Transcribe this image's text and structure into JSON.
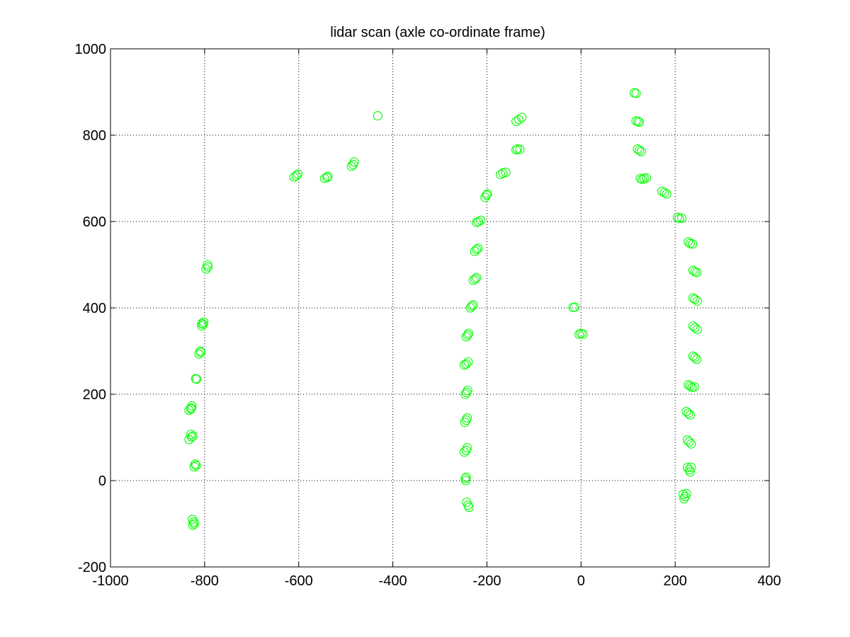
{
  "chart_data": {
    "type": "scatter",
    "title": "lidar scan (axle co-ordinate frame)",
    "xlabel": "",
    "ylabel": "",
    "xlim": [
      -1000,
      400
    ],
    "ylim": [
      -200,
      1000
    ],
    "xticks": [
      -1000,
      -800,
      -600,
      -400,
      -200,
      0,
      200,
      400
    ],
    "yticks": [
      -200,
      0,
      200,
      400,
      600,
      800,
      1000
    ],
    "xtick_labels": [
      "-1000",
      "-800",
      "-600",
      "-400",
      "-200",
      "0",
      "200",
      "400"
    ],
    "ytick_labels": [
      "-200",
      "0",
      "200",
      "400",
      "600",
      "800",
      "1000"
    ],
    "grid": true,
    "marker": "circle",
    "color": "#00ff00",
    "series": [
      {
        "points": [
          [
            -797,
            490
          ],
          [
            -793,
            495
          ],
          [
            -794,
            500
          ],
          [
            -806,
            358
          ],
          [
            -803,
            362
          ],
          [
            -802,
            367
          ],
          [
            -806,
            364
          ],
          [
            -812,
            293
          ],
          [
            -808,
            297
          ],
          [
            -809,
            300
          ],
          [
            -819,
            236
          ],
          [
            -817,
            235
          ],
          [
            -833,
            163
          ],
          [
            -828,
            168
          ],
          [
            -827,
            173
          ],
          [
            -829,
            166
          ],
          [
            -833,
            95
          ],
          [
            -828,
            101
          ],
          [
            -825,
            103
          ],
          [
            -829,
            107
          ],
          [
            -822,
            32
          ],
          [
            -820,
            38
          ],
          [
            -818,
            35
          ],
          [
            -826,
            -90
          ],
          [
            -823,
            -96
          ],
          [
            -825,
            -103
          ],
          [
            -822,
            -100
          ],
          [
            -610,
            703
          ],
          [
            -605,
            706
          ],
          [
            -602,
            710
          ],
          [
            -545,
            700
          ],
          [
            -540,
            702
          ],
          [
            -538,
            705
          ],
          [
            -488,
            728
          ],
          [
            -484,
            732
          ],
          [
            -482,
            738
          ],
          [
            -432,
            845
          ],
          [
            -171,
            709
          ],
          [
            -166,
            712
          ],
          [
            -160,
            714
          ],
          [
            -204,
            656
          ],
          [
            -201,
            661
          ],
          [
            -199,
            664
          ],
          [
            -222,
            598
          ],
          [
            -218,
            600
          ],
          [
            -213,
            603
          ],
          [
            -226,
            531
          ],
          [
            -222,
            535
          ],
          [
            -219,
            538
          ],
          [
            -229,
            464
          ],
          [
            -225,
            467
          ],
          [
            -222,
            470
          ],
          [
            -235,
            400
          ],
          [
            -232,
            404
          ],
          [
            -229,
            407
          ],
          [
            -244,
            333
          ],
          [
            -241,
            337
          ],
          [
            -239,
            341
          ],
          [
            -248,
            268
          ],
          [
            -244,
            270
          ],
          [
            -240,
            275
          ],
          [
            -246,
            200
          ],
          [
            -243,
            204
          ],
          [
            -241,
            209
          ],
          [
            -247,
            135
          ],
          [
            -244,
            140
          ],
          [
            -242,
            145
          ],
          [
            -248,
            66
          ],
          [
            -244,
            70
          ],
          [
            -242,
            76
          ],
          [
            -246,
            5
          ],
          [
            -244,
            8
          ],
          [
            -245,
            0
          ],
          [
            -243,
            -50
          ],
          [
            -240,
            -57
          ],
          [
            -238,
            -62
          ],
          [
            -138,
            832
          ],
          [
            -132,
            836
          ],
          [
            -126,
            841
          ],
          [
            -138,
            766
          ],
          [
            -135,
            768
          ],
          [
            -130,
            767
          ],
          [
            -17,
            401
          ],
          [
            -13,
            402
          ],
          [
            -4,
            339
          ],
          [
            0,
            341
          ],
          [
            4,
            339
          ],
          [
            113,
            898
          ],
          [
            117,
            897
          ],
          [
            117,
            833
          ],
          [
            121,
            832
          ],
          [
            124,
            830
          ],
          [
            120,
            768
          ],
          [
            124,
            765
          ],
          [
            128,
            762
          ],
          [
            126,
            700
          ],
          [
            130,
            698
          ],
          [
            134,
            700
          ],
          [
            139,
            701
          ],
          [
            172,
            670
          ],
          [
            177,
            667
          ],
          [
            182,
            664
          ],
          [
            205,
            610
          ],
          [
            209,
            607
          ],
          [
            214,
            608
          ],
          [
            228,
            553
          ],
          [
            232,
            549
          ],
          [
            237,
            548
          ],
          [
            238,
            487
          ],
          [
            242,
            484
          ],
          [
            246,
            482
          ],
          [
            238,
            423
          ],
          [
            242,
            420
          ],
          [
            247,
            416
          ],
          [
            238,
            358
          ],
          [
            242,
            354
          ],
          [
            247,
            350
          ],
          [
            238,
            288
          ],
          [
            242,
            285
          ],
          [
            246,
            281
          ],
          [
            228,
            222
          ],
          [
            232,
            219
          ],
          [
            236,
            216
          ],
          [
            241,
            217
          ],
          [
            224,
            160
          ],
          [
            228,
            156
          ],
          [
            232,
            152
          ],
          [
            226,
            94
          ],
          [
            230,
            90
          ],
          [
            234,
            85
          ],
          [
            226,
            30
          ],
          [
            230,
            25
          ],
          [
            234,
            31
          ],
          [
            232,
            20
          ],
          [
            217,
            -32
          ],
          [
            221,
            -37
          ],
          [
            224,
            -30
          ],
          [
            219,
            -42
          ]
        ]
      }
    ]
  }
}
